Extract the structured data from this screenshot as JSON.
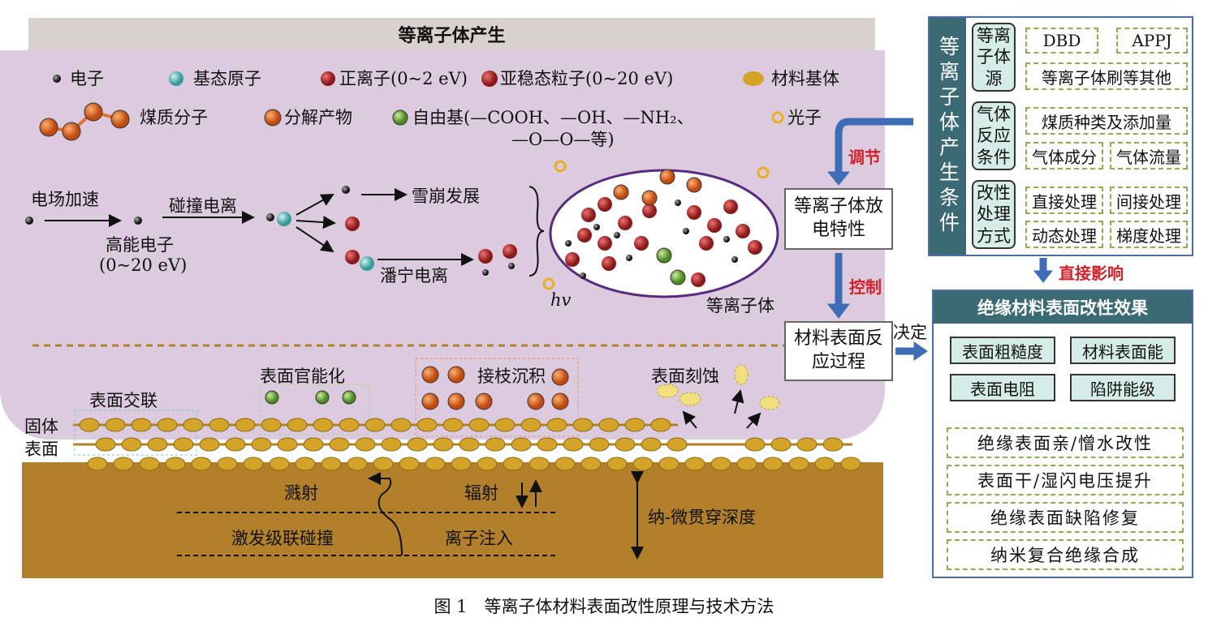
{
  "header": {
    "title": "等离子体产生"
  },
  "legend": {
    "electron": "电子",
    "ground_atom": "基态原子",
    "positive_ion": "正离子(0~2 eV)",
    "metastable": "亚稳态粒子(0~20 eV)",
    "substrate": "材料基体",
    "medium_molecule": "煤质分子",
    "decomposition": "分解产物",
    "radical": "自由基(—COOH、—OH、—NH₂、",
    "radical_line2": "—O—O—等)",
    "photon": "光子"
  },
  "process": {
    "field_accel": "电场加速",
    "collision_ion": "碰撞电离",
    "high_energy_electron": "高能电子",
    "energy_range": "(0~20 eV)",
    "avalanche": "雪崩发展",
    "penning": "潘宁电离",
    "hv": "hv",
    "plasma": "等离子体"
  },
  "surface": {
    "crosslink": "表面交联",
    "functionalization": "表面官能化",
    "grafting": "接枝沉积",
    "etching": "表面刻蚀",
    "solid_surface_1": "固体",
    "solid_surface_2": "表面",
    "sputtering": "溅射",
    "radiation": "辐射",
    "cascade": "激发级联碰撞",
    "implantation": "离子注入",
    "depth": "纳-微贯穿深度"
  },
  "center": {
    "discharge_box": "等离子体放电特性",
    "reaction_box": "材料表面反应过程",
    "regulate": "调节",
    "control": "控制",
    "determine": "决定",
    "direct_influence": "直接影响"
  },
  "conditions": {
    "title": "等离子体产生条件",
    "categories": [
      {
        "label": "等离子体源",
        "items": [
          "DBD",
          "APPJ",
          "等离子体刷等其他"
        ]
      },
      {
        "label": "气体反应条件",
        "items": [
          "煤质种类及添加量",
          "气体成分",
          "气体流量"
        ]
      },
      {
        "label": "改性处理方式",
        "items": [
          "直接处理",
          "间接处理",
          "动态处理",
          "梯度处理"
        ]
      }
    ]
  },
  "effects": {
    "title": "绝缘材料表面改性效果",
    "params": [
      "表面粗糙度",
      "材料表面能",
      "表面电阻",
      "陷阱能级"
    ],
    "results": [
      "绝缘表面亲/憎水改性",
      "表面干/湿闪电压提升",
      "绝缘表面缺陷修复",
      "纳米复合绝缘合成"
    ]
  },
  "caption": "图 1　等离子体材料表面改性原理与技术方法",
  "colors": {
    "accent_teal": "#3b6a75",
    "plasma_purple": "#dccbdf",
    "substrate_brown": "#b27f2b",
    "arrow_blue": "#3f6db5",
    "label_red": "#d0222a"
  }
}
